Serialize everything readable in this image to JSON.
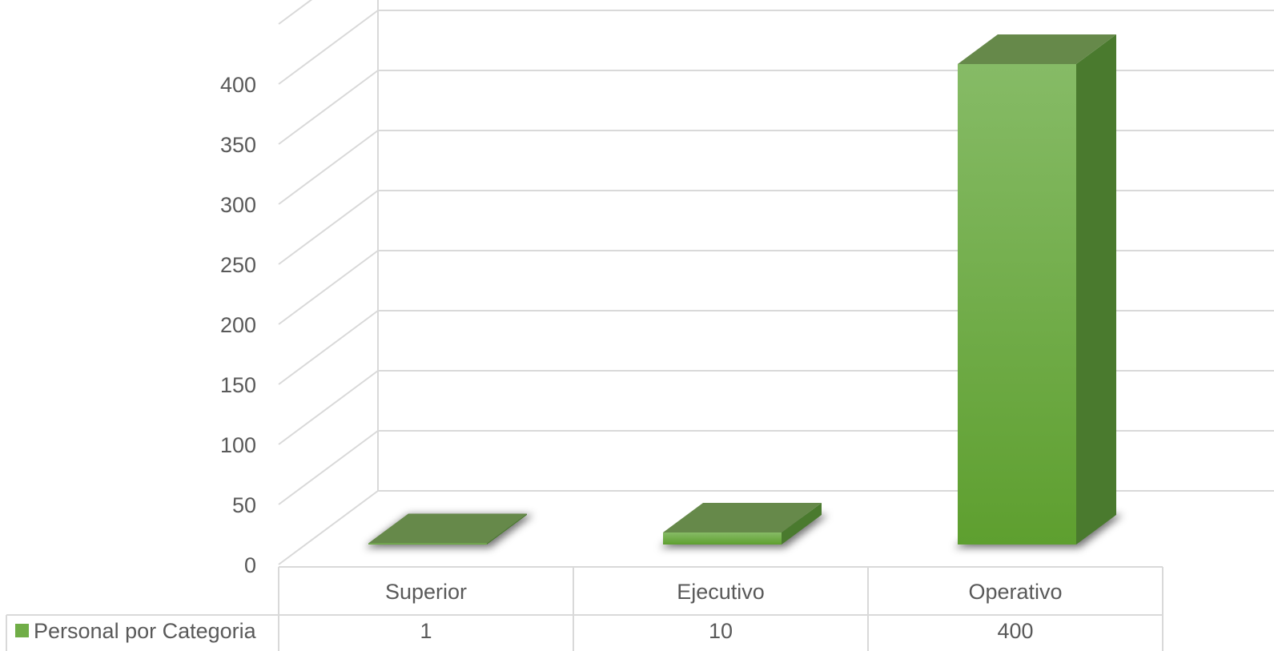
{
  "chart_data": {
    "type": "bar",
    "style": "3d-column-with-data-table",
    "title": "",
    "xlabel": "",
    "ylabel": "",
    "categories": [
      "Superior",
      "Ejecutivo",
      "Operativo"
    ],
    "series": [
      {
        "name": "Personal por Categoria",
        "values": [
          1,
          10,
          400
        ],
        "color": "#70ad47"
      }
    ],
    "ylim": [
      0,
      450
    ],
    "yticks": [
      0,
      50,
      100,
      150,
      200,
      250,
      300,
      350,
      400
    ],
    "grid": true,
    "legend": "data-table-left",
    "data_table": true
  },
  "colors": {
    "bar_front_top": "#86bb66",
    "bar_front_bottom": "#5e9f2f",
    "bar_side": "#4a7a2e",
    "bar_top": "#66894a",
    "grid": "#d9d9d9",
    "text": "#595959"
  }
}
